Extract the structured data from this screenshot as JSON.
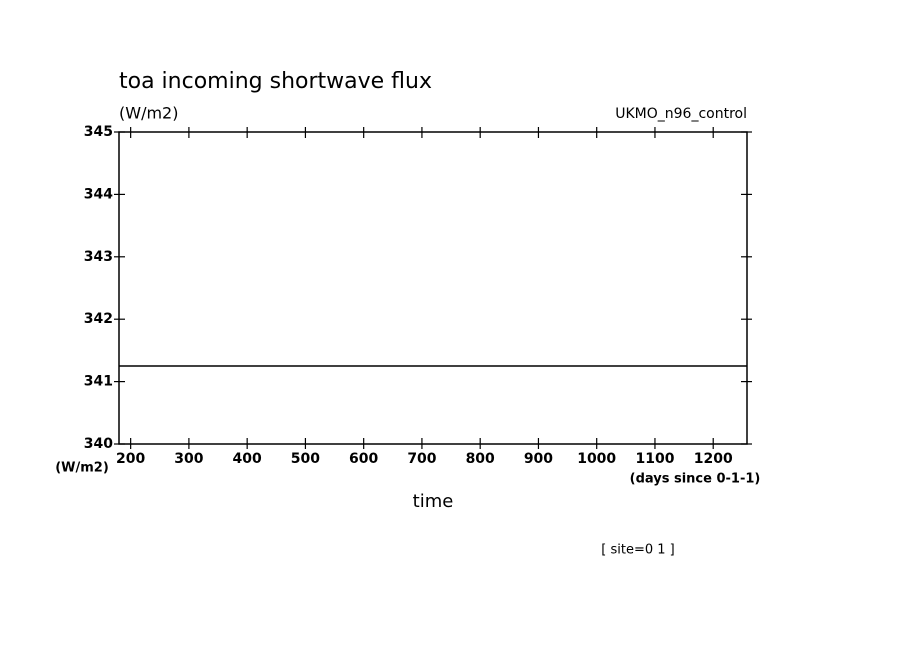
{
  "chart_data": {
    "type": "line",
    "title": "toa incoming shortwave flux",
    "subtitle": "(W/m2)",
    "dataset": "UKMO_n96_control",
    "y_label": "(W/m2)",
    "x_unit_label": "(days since 0-1-1)",
    "x_label": "time",
    "annotation": "[ site=0 1 ]",
    "x": [
      180,
      1258
    ],
    "series": [
      {
        "color": "#000000",
        "values": [
          341.25,
          341.25
        ]
      }
    ],
    "xlim": [
      180,
      1258
    ],
    "xticks": [
      200,
      300,
      400,
      500,
      600,
      700,
      800,
      900,
      1000,
      1100,
      1200
    ],
    "ylim": [
      340,
      345
    ],
    "yticks": [
      340,
      341,
      342,
      343,
      344,
      345
    ],
    "grid": false
  }
}
